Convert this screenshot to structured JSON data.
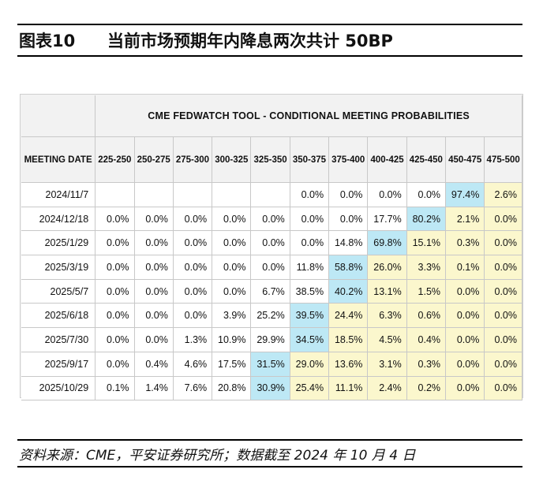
{
  "figure": {
    "label": "图表10",
    "title": "当前市场预期年内降息两次共计 50BP",
    "source": "资料来源：CME，平安证券研究所；数据截至 2024 年 10 月 4 日"
  },
  "table": {
    "tool_title": "CME FEDWATCH TOOL - CONDITIONAL MEETING PROBABILITIES",
    "date_header": "MEETING DATE",
    "columns": [
      "225-250",
      "250-275",
      "275-300",
      "300-325",
      "325-350",
      "350-375",
      "375-400",
      "400-425",
      "425-450",
      "450-475",
      "475-500"
    ],
    "rows": [
      {
        "date": "2024/11/7",
        "cells": [
          "",
          "",
          "",
          "",
          "",
          "0.0%",
          "0.0%",
          "0.0%",
          "0.0%",
          "97.4%",
          "2.6%"
        ]
      },
      {
        "date": "2024/12/18",
        "cells": [
          "0.0%",
          "0.0%",
          "0.0%",
          "0.0%",
          "0.0%",
          "0.0%",
          "0.0%",
          "17.7%",
          "80.2%",
          "2.1%",
          "0.0%"
        ]
      },
      {
        "date": "2025/1/29",
        "cells": [
          "0.0%",
          "0.0%",
          "0.0%",
          "0.0%",
          "0.0%",
          "0.0%",
          "14.8%",
          "69.8%",
          "15.1%",
          "0.3%",
          "0.0%"
        ]
      },
      {
        "date": "2025/3/19",
        "cells": [
          "0.0%",
          "0.0%",
          "0.0%",
          "0.0%",
          "0.0%",
          "11.8%",
          "58.8%",
          "26.0%",
          "3.3%",
          "0.1%",
          "0.0%"
        ]
      },
      {
        "date": "2025/5/7",
        "cells": [
          "0.0%",
          "0.0%",
          "0.0%",
          "0.0%",
          "6.7%",
          "38.5%",
          "40.2%",
          "13.1%",
          "1.5%",
          "0.0%",
          "0.0%"
        ]
      },
      {
        "date": "2025/6/18",
        "cells": [
          "0.0%",
          "0.0%",
          "0.0%",
          "3.9%",
          "25.2%",
          "39.5%",
          "24.4%",
          "6.3%",
          "0.6%",
          "0.0%",
          "0.0%"
        ]
      },
      {
        "date": "2025/7/30",
        "cells": [
          "0.0%",
          "0.0%",
          "1.3%",
          "10.9%",
          "29.9%",
          "34.5%",
          "18.5%",
          "4.5%",
          "0.4%",
          "0.0%",
          "0.0%"
        ]
      },
      {
        "date": "2025/9/17",
        "cells": [
          "0.0%",
          "0.4%",
          "4.6%",
          "17.5%",
          "31.5%",
          "29.0%",
          "13.6%",
          "3.1%",
          "0.3%",
          "0.0%",
          "0.0%"
        ]
      },
      {
        "date": "2025/10/29",
        "cells": [
          "0.1%",
          "1.4%",
          "7.6%",
          "20.8%",
          "30.9%",
          "25.4%",
          "11.1%",
          "2.4%",
          "0.2%",
          "0.0%",
          "0.0%"
        ]
      }
    ],
    "highlight_blue": [
      [
        0,
        9
      ],
      [
        1,
        8
      ],
      [
        2,
        7
      ],
      [
        3,
        6
      ],
      [
        4,
        6
      ],
      [
        5,
        5
      ],
      [
        6,
        5
      ],
      [
        7,
        4
      ],
      [
        8,
        4
      ]
    ],
    "highlight_yellow_from_col": 5,
    "colors": {
      "blue": "#bde8f5",
      "yellow": "#fbf7cd",
      "header_bg": "#f2f2f2"
    }
  }
}
